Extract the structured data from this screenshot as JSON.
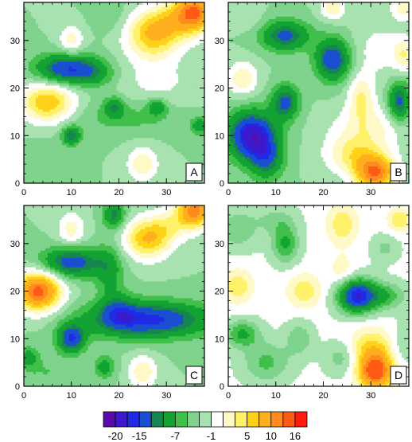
{
  "chart_data": [
    {
      "type": "heatmap",
      "label": "A",
      "xlim": [
        0,
        38
      ],
      "ylim": [
        0,
        38
      ],
      "xticks": [
        0,
        10,
        20,
        30
      ],
      "yticks": [
        0,
        10,
        20,
        30
      ],
      "base": -3,
      "blobs": [
        {
          "x": 27,
          "y": 31,
          "a": 9,
          "sx": 4,
          "sy": 3.5
        },
        {
          "x": 36,
          "y": 36,
          "a": 14,
          "sx": 3,
          "sy": 3
        },
        {
          "x": 31,
          "y": 34,
          "a": 5,
          "sx": 4,
          "sy": 3
        },
        {
          "x": 5,
          "y": 17,
          "a": 10,
          "sx": 4,
          "sy": 3
        },
        {
          "x": 10,
          "y": 30,
          "a": 5,
          "sx": 1.8,
          "sy": 2.2
        },
        {
          "x": 25,
          "y": 4,
          "a": 6,
          "sx": 2.2,
          "sy": 2.5
        },
        {
          "x": 28,
          "y": 21,
          "a": 2.5,
          "sx": 6,
          "sy": 4
        },
        {
          "x": 9,
          "y": 24,
          "a": -12,
          "sx": 4.5,
          "sy": 2.2
        },
        {
          "x": 15,
          "y": 23,
          "a": -4,
          "sx": 3,
          "sy": 2
        },
        {
          "x": 10,
          "y": 10,
          "a": -9,
          "sx": 1.4,
          "sy": 1.4
        },
        {
          "x": 19,
          "y": 16,
          "a": -6,
          "sx": 1.5,
          "sy": 1.5
        },
        {
          "x": 28,
          "y": 16,
          "a": -6,
          "sx": 1.4,
          "sy": 1.3
        },
        {
          "x": 37,
          "y": 12,
          "a": -6,
          "sx": 1.3,
          "sy": 1.3
        },
        {
          "x": 22,
          "y": 14,
          "a": -3,
          "sx": 8,
          "sy": 2.5
        },
        {
          "x": 18,
          "y": 36,
          "a": -2,
          "sx": 2.5,
          "sy": 3
        },
        {
          "x": 3,
          "y": 5,
          "a": -1,
          "sx": 4,
          "sy": 3
        }
      ]
    },
    {
      "type": "heatmap",
      "label": "B",
      "xlim": [
        0,
        38
      ],
      "ylim": [
        0,
        38
      ],
      "xticks": [
        0,
        10,
        20,
        30
      ],
      "yticks": [
        0,
        10,
        20,
        30
      ],
      "base": -3,
      "blobs": [
        {
          "x": 5,
          "y": 10,
          "a": -16,
          "sx": 3.5,
          "sy": 3.5
        },
        {
          "x": 8,
          "y": 5,
          "a": -8,
          "sx": 2.5,
          "sy": 3
        },
        {
          "x": 12,
          "y": 17,
          "a": -10,
          "sx": 2,
          "sy": 2.5
        },
        {
          "x": 12,
          "y": 31,
          "a": -10,
          "sx": 3.5,
          "sy": 2.2
        },
        {
          "x": 22,
          "y": 26,
          "a": -12,
          "sx": 2.5,
          "sy": 3
        },
        {
          "x": 36,
          "y": 17,
          "a": -10,
          "sx": 1.6,
          "sy": 3
        },
        {
          "x": 31,
          "y": 2,
          "a": 14,
          "sx": 3,
          "sy": 2.5
        },
        {
          "x": 27,
          "y": 6,
          "a": 7,
          "sx": 4.5,
          "sy": 3
        },
        {
          "x": 28,
          "y": 18,
          "a": 6,
          "sx": 2,
          "sy": 3.5
        },
        {
          "x": 3,
          "y": 22,
          "a": 6,
          "sx": 2.2,
          "sy": 2.5
        },
        {
          "x": 22,
          "y": 37,
          "a": 6,
          "sx": 1.8,
          "sy": 1.8
        },
        {
          "x": 37,
          "y": 37,
          "a": 5,
          "sx": 2,
          "sy": 2
        },
        {
          "x": 37,
          "y": 27,
          "a": 5,
          "sx": 1.5,
          "sy": 2.5
        },
        {
          "x": 32,
          "y": 28,
          "a": 3,
          "sx": 4,
          "sy": 4
        },
        {
          "x": 4,
          "y": 35,
          "a": 2,
          "sx": 2,
          "sy": 2
        },
        {
          "x": 30,
          "y": 12,
          "a": 4,
          "sx": 6,
          "sy": 3
        }
      ]
    },
    {
      "type": "heatmap",
      "label": "C",
      "xlim": [
        0,
        38
      ],
      "ylim": [
        0,
        38
      ],
      "xticks": [
        0,
        10,
        20,
        30
      ],
      "yticks": [
        0,
        10,
        20,
        30
      ],
      "base": -3,
      "blobs": [
        {
          "x": 36,
          "y": 37,
          "a": 14,
          "sx": 2.6,
          "sy": 2.6
        },
        {
          "x": 26,
          "y": 31,
          "a": 10,
          "sx": 3.5,
          "sy": 3
        },
        {
          "x": 31,
          "y": 34,
          "a": 4,
          "sx": 3,
          "sy": 2.5
        },
        {
          "x": 3,
          "y": 20,
          "a": 16,
          "sx": 3.5,
          "sy": 3
        },
        {
          "x": 10,
          "y": 33,
          "a": 5,
          "sx": 2,
          "sy": 2.5
        },
        {
          "x": 25,
          "y": 3,
          "a": 6,
          "sx": 2,
          "sy": 2.5
        },
        {
          "x": 26,
          "y": 14,
          "a": -13,
          "sx": 9,
          "sy": 2.6
        },
        {
          "x": 20,
          "y": 16,
          "a": -5,
          "sx": 2.5,
          "sy": 2.5
        },
        {
          "x": 10,
          "y": 26,
          "a": -11,
          "sx": 4.5,
          "sy": 2.2
        },
        {
          "x": 10,
          "y": 10,
          "a": -12,
          "sx": 2,
          "sy": 2
        },
        {
          "x": 19,
          "y": 36,
          "a": -8,
          "sx": 1.6,
          "sy": 2
        },
        {
          "x": 17,
          "y": 4,
          "a": -6,
          "sx": 1.4,
          "sy": 1.6
        },
        {
          "x": 1,
          "y": 6,
          "a": -5,
          "sx": 1.4,
          "sy": 1.6
        },
        {
          "x": 18,
          "y": 24,
          "a": -5,
          "sx": 2,
          "sy": 4
        },
        {
          "x": 5,
          "y": 3,
          "a": -2,
          "sx": 4,
          "sy": 3
        }
      ]
    },
    {
      "type": "heatmap",
      "label": "D",
      "xlim": [
        0,
        38
      ],
      "ylim": [
        0,
        38
      ],
      "xticks": [
        0,
        10,
        20,
        30
      ],
      "yticks": [
        0,
        10,
        20,
        30
      ],
      "base": -0.5,
      "blobs": [
        {
          "x": 27,
          "y": 19,
          "a": -16,
          "sx": 2.8,
          "sy": 2.5
        },
        {
          "x": 33,
          "y": 19,
          "a": -6,
          "sx": 3,
          "sy": 2
        },
        {
          "x": 3,
          "y": 11,
          "a": -7,
          "sx": 2.5,
          "sy": 2
        },
        {
          "x": 12,
          "y": 30,
          "a": -7,
          "sx": 2,
          "sy": 2.8
        },
        {
          "x": 2,
          "y": 33,
          "a": -4,
          "sx": 3,
          "sy": 3
        },
        {
          "x": 8,
          "y": 5,
          "a": -5,
          "sx": 3.5,
          "sy": 3
        },
        {
          "x": 15,
          "y": 10,
          "a": -4,
          "sx": 2,
          "sy": 2.5
        },
        {
          "x": 24,
          "y": 6,
          "a": -4,
          "sx": 2.5,
          "sy": 2.5
        },
        {
          "x": 10,
          "y": 35,
          "a": -3,
          "sx": 3,
          "sy": 2
        },
        {
          "x": 37,
          "y": 9,
          "a": -3,
          "sx": 2,
          "sy": 3
        },
        {
          "x": 33,
          "y": 29,
          "a": -3,
          "sx": 2,
          "sy": 2
        },
        {
          "x": 31,
          "y": 3,
          "a": 14,
          "sx": 2.6,
          "sy": 2.6
        },
        {
          "x": 30,
          "y": 8,
          "a": 6,
          "sx": 3.5,
          "sy": 3
        },
        {
          "x": 2,
          "y": 21,
          "a": 5,
          "sx": 2.3,
          "sy": 2.5
        },
        {
          "x": 24,
          "y": 34,
          "a": 5,
          "sx": 2.3,
          "sy": 3
        },
        {
          "x": 16,
          "y": 20,
          "a": 5,
          "sx": 2.5,
          "sy": 2.5
        },
        {
          "x": 36,
          "y": 35,
          "a": 5,
          "sx": 1.8,
          "sy": 1.8
        },
        {
          "x": 24,
          "y": 24,
          "a": 3,
          "sx": 2,
          "sy": 2.5
        }
      ]
    }
  ],
  "colorbar": {
    "levels": [
      -20,
      -17,
      -15,
      -12,
      -10,
      -7,
      -5,
      -3,
      -1,
      1,
      3,
      5,
      7,
      10,
      12,
      16
    ],
    "colors": [
      "#5b0ca8",
      "#3c1acb",
      "#1e2ae6",
      "#1a4fd0",
      "#17854f",
      "#13a332",
      "#40c04b",
      "#7fd38c",
      "#a8e2b0",
      "#ffffff",
      "#fff9c8",
      "#fff26a",
      "#ffd21a",
      "#ffae1e",
      "#ff8a1e",
      "#ff5a14",
      "#ff1c0e"
    ],
    "tick_labels": [
      {
        "level": -20,
        "label": "-20"
      },
      {
        "level": -15,
        "label": "-15"
      },
      {
        "level": -7,
        "label": "-7"
      },
      {
        "level": -1,
        "label": "-1"
      },
      {
        "level": 5,
        "label": "5"
      },
      {
        "level": 10,
        "label": "10"
      },
      {
        "level": 16,
        "label": "16"
      }
    ]
  }
}
